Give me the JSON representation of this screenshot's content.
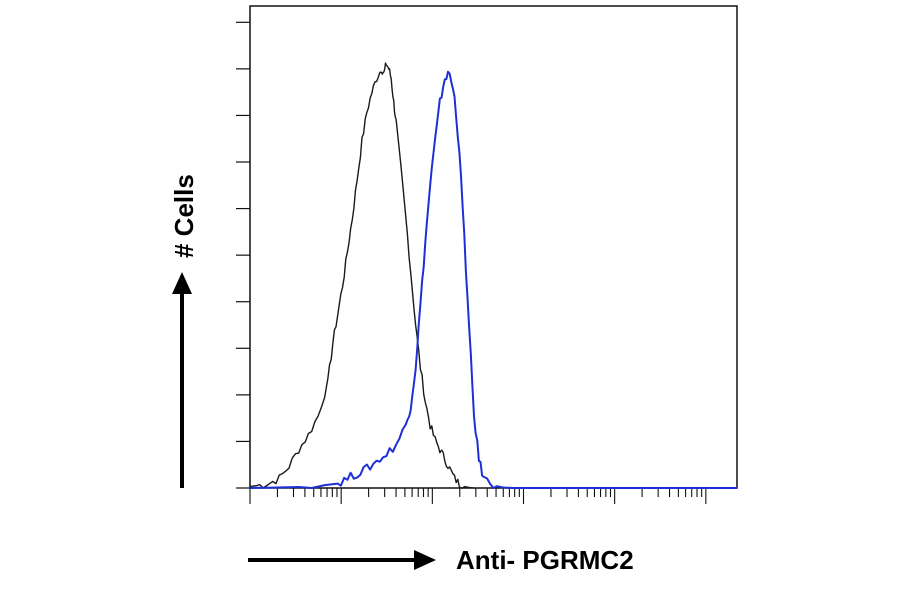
{
  "chart_data": {
    "type": "line",
    "title": "",
    "xlabel": "Anti- PGRMC2",
    "ylabel": "# Cells",
    "x_scale": "log",
    "xlim": [
      0,
      1
    ],
    "ylim": [
      0,
      1
    ],
    "grid": false,
    "legend": "none",
    "series": [
      {
        "color": "#1a1a1a",
        "x": [
          0.0,
          0.02,
          0.04,
          0.06,
          0.08,
          0.1,
          0.12,
          0.14,
          0.16,
          0.17,
          0.18,
          0.19,
          0.2,
          0.21,
          0.22,
          0.23,
          0.24,
          0.25,
          0.26,
          0.27,
          0.275,
          0.28,
          0.285,
          0.29,
          0.295,
          0.3,
          0.31,
          0.32,
          0.33,
          0.34,
          0.35,
          0.36,
          0.37,
          0.38,
          0.39,
          0.4,
          0.41,
          0.42,
          0.43,
          0.44,
          0.45,
          0.46
        ],
        "y": [
          0.003,
          0.006,
          0.01,
          0.02,
          0.045,
          0.08,
          0.11,
          0.15,
          0.22,
          0.3,
          0.36,
          0.42,
          0.49,
          0.56,
          0.64,
          0.72,
          0.78,
          0.82,
          0.85,
          0.87,
          0.86,
          0.88,
          0.87,
          0.85,
          0.8,
          0.76,
          0.66,
          0.56,
          0.45,
          0.34,
          0.25,
          0.18,
          0.13,
          0.1,
          0.08,
          0.06,
          0.04,
          0.02,
          0.008,
          0.003,
          0.001,
          0.0
        ]
      },
      {
        "color": "#1f2fd6",
        "x": [
          0.0,
          0.1,
          0.18,
          0.2,
          0.22,
          0.24,
          0.26,
          0.28,
          0.3,
          0.32,
          0.33,
          0.34,
          0.35,
          0.36,
          0.37,
          0.38,
          0.39,
          0.4,
          0.41,
          0.42,
          0.43,
          0.44,
          0.45,
          0.46,
          0.47,
          0.48,
          0.5,
          0.52,
          0.54,
          1.0
        ],
        "y": [
          0.0,
          0.002,
          0.01,
          0.02,
          0.03,
          0.04,
          0.055,
          0.07,
          0.09,
          0.13,
          0.17,
          0.25,
          0.38,
          0.51,
          0.63,
          0.72,
          0.8,
          0.85,
          0.86,
          0.81,
          0.7,
          0.52,
          0.33,
          0.15,
          0.06,
          0.02,
          0.005,
          0.001,
          0.0,
          0.0
        ]
      }
    ]
  }
}
